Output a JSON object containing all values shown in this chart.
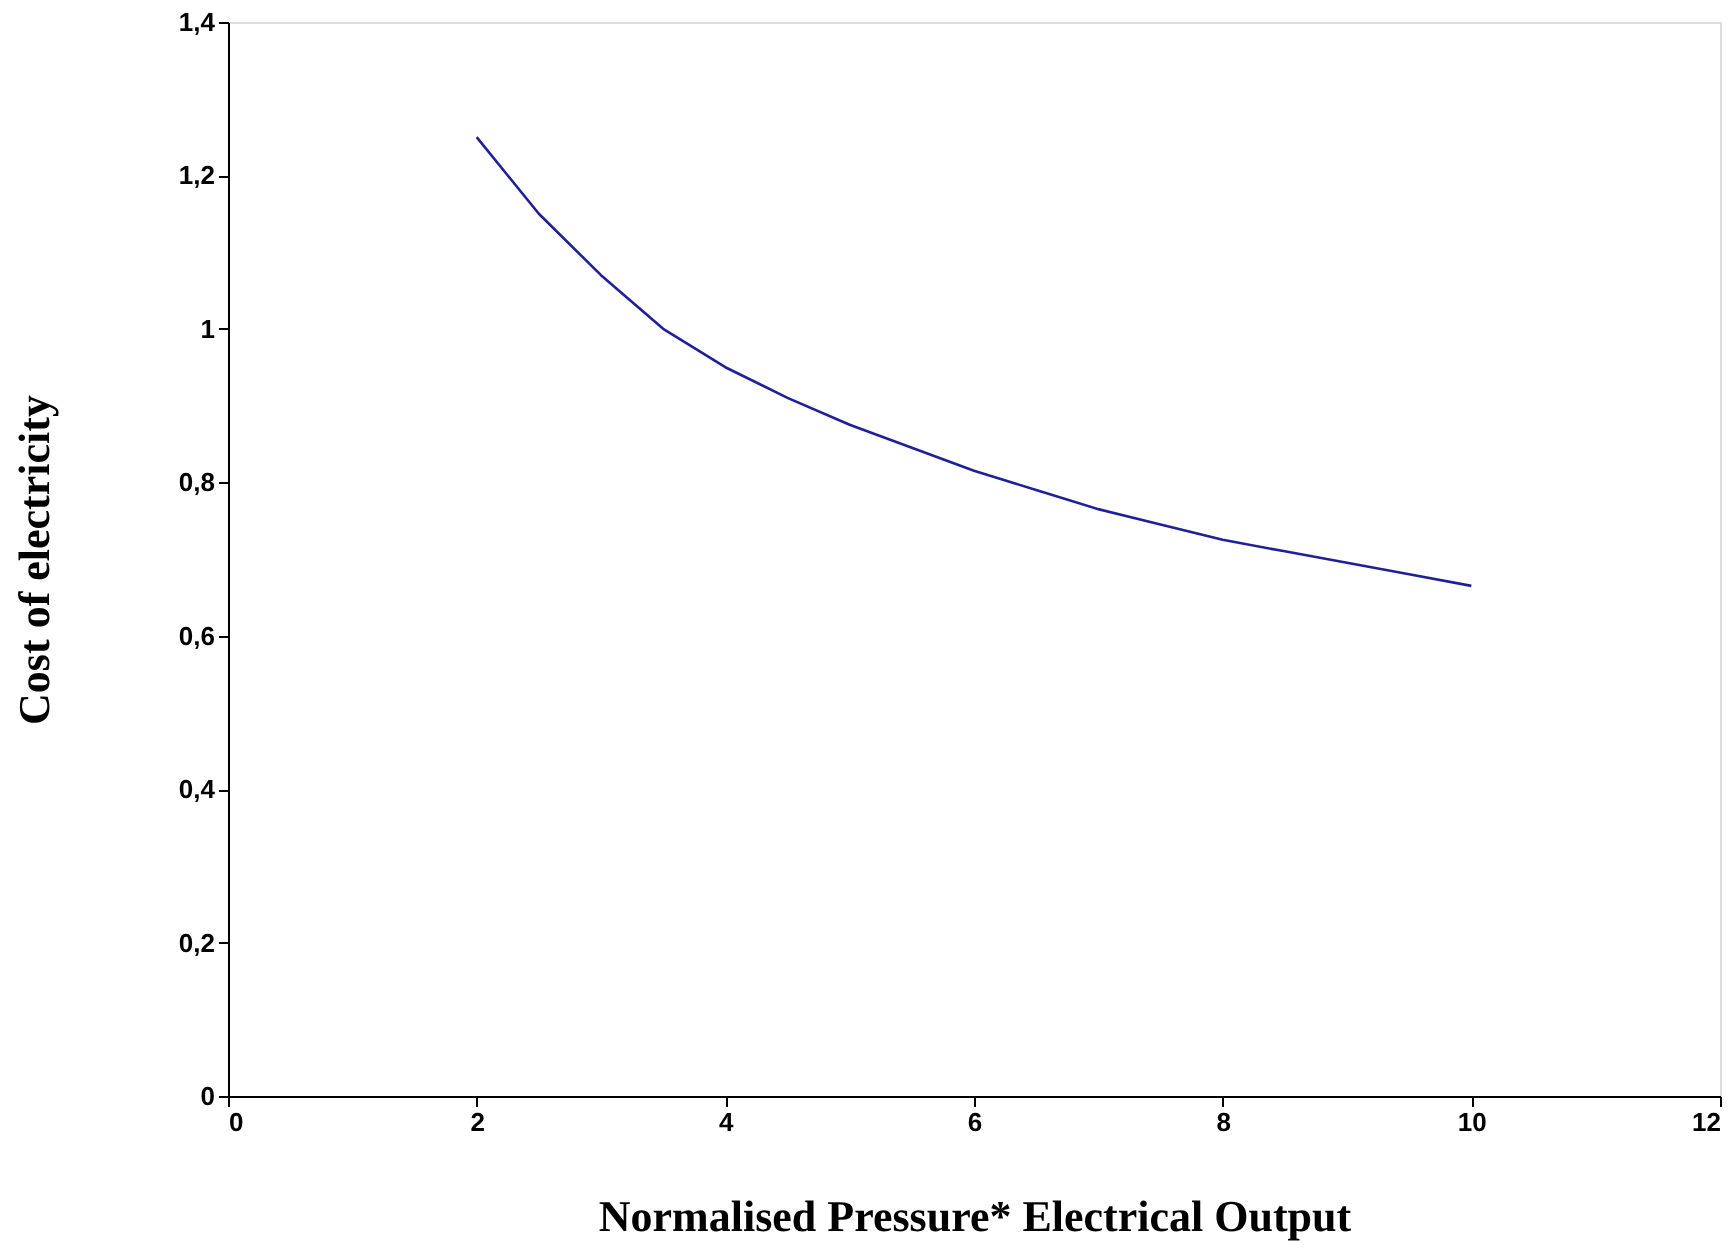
{
  "chart_data": {
    "type": "line",
    "xlabel": "Normalised Pressure* Electrical Output",
    "ylabel": "Cost of electricity",
    "x": [
      2,
      2.5,
      3,
      3.5,
      4,
      4.5,
      5,
      5.5,
      6,
      6.5,
      7,
      7.5,
      8,
      8.5,
      9,
      9.5,
      10
    ],
    "series": [
      {
        "color": "#1f1f9a",
        "values": [
          1.25,
          1.15,
          1.07,
          1.0,
          0.95,
          0.91,
          0.875,
          0.845,
          0.815,
          0.79,
          0.765,
          0.745,
          0.725,
          0.71,
          0.695,
          0.68,
          0.665
        ]
      }
    ],
    "xlim": [
      0,
      12
    ],
    "xticks": [
      0,
      2,
      4,
      6,
      8,
      10,
      12
    ],
    "ylim": [
      0,
      1.4
    ],
    "yticks": [
      0,
      {
        "value": 0.2,
        "label": "0,2"
      },
      {
        "value": 0.4,
        "label": "0,4"
      },
      {
        "value": 0.6,
        "label": "0,6"
      },
      {
        "value": 0.8,
        "label": "0,8"
      },
      1,
      {
        "value": 1.2,
        "label": "1,2"
      },
      {
        "value": 1.4,
        "label": "1,4"
      }
    ],
    "grid": false,
    "marker": "none",
    "line_style": "solid",
    "legend": false
  }
}
